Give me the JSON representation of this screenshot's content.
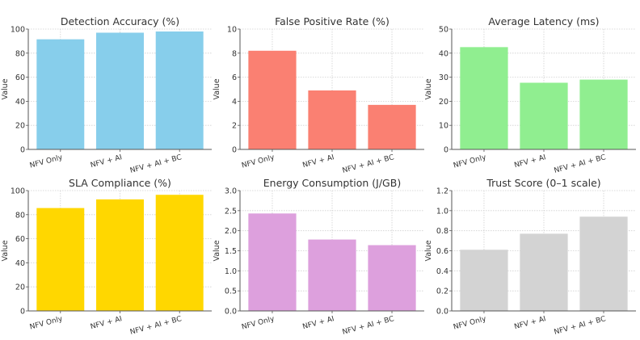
{
  "chart_data": [
    {
      "type": "bar",
      "title": "Detection Accuracy (%)",
      "ylabel": "Value",
      "xlabel": "",
      "categories": [
        "NFV Only",
        "NFV + AI",
        "NFV + AI + BC"
      ],
      "values": [
        91.5,
        97,
        98
      ],
      "ylim": [
        0,
        100
      ],
      "yticks": [
        "0",
        "20",
        "40",
        "60",
        "80",
        "100"
      ],
      "ytick_values": [
        0,
        20,
        40,
        60,
        80,
        100
      ],
      "color": "#87CEEB",
      "grid": true
    },
    {
      "type": "bar",
      "title": "False Positive Rate (%)",
      "ylabel": "Value",
      "xlabel": "",
      "categories": [
        "NFV Only",
        "NFV + AI",
        "NFV + AI + BC"
      ],
      "values": [
        8.2,
        4.9,
        3.7
      ],
      "ylim": [
        0,
        10
      ],
      "yticks": [
        "0",
        "2",
        "4",
        "6",
        "8",
        "10"
      ],
      "ytick_values": [
        0,
        2,
        4,
        6,
        8,
        10
      ],
      "color": "#FA8072",
      "grid": true
    },
    {
      "type": "bar",
      "title": "Average Latency (ms)",
      "ylabel": "Value",
      "xlabel": "",
      "categories": [
        "NFV Only",
        "NFV + AI",
        "NFV + AI + BC"
      ],
      "values": [
        42.5,
        27.7,
        29
      ],
      "ylim": [
        0,
        50
      ],
      "yticks": [
        "0",
        "10",
        "20",
        "30",
        "40",
        "50"
      ],
      "ytick_values": [
        0,
        10,
        20,
        30,
        40,
        50
      ],
      "color": "#90EE90",
      "grid": true
    },
    {
      "type": "bar",
      "title": "SLA Compliance (%)",
      "ylabel": "Value",
      "xlabel": "",
      "categories": [
        "NFV Only",
        "NFV + AI",
        "NFV + AI + BC"
      ],
      "values": [
        85.5,
        92.7,
        96.5
      ],
      "ylim": [
        0,
        100
      ],
      "yticks": [
        "0",
        "20",
        "40",
        "60",
        "80",
        "100"
      ],
      "ytick_values": [
        0,
        20,
        40,
        60,
        80,
        100
      ],
      "color": "#FFD700",
      "grid": true
    },
    {
      "type": "bar",
      "title": "Energy Consumption (J/GB)",
      "ylabel": "Value",
      "xlabel": "",
      "categories": [
        "NFV Only",
        "NFV + AI",
        "NFV + AI + BC"
      ],
      "values": [
        2.43,
        1.78,
        1.64
      ],
      "ylim": [
        0,
        3.0
      ],
      "yticks": [
        "0.0",
        "0.5",
        "1.0",
        "1.5",
        "2.0",
        "2.5",
        "3.0"
      ],
      "ytick_values": [
        0,
        0.5,
        1.0,
        1.5,
        2.0,
        2.5,
        3.0
      ],
      "color": "#DDA0DD",
      "grid": true
    },
    {
      "type": "bar",
      "title": "Trust Score (0–1 scale)",
      "ylabel": "Value",
      "xlabel": "",
      "categories": [
        "NFV Only",
        "NFV + AI",
        "NFV + AI + BC"
      ],
      "values": [
        0.61,
        0.77,
        0.94
      ],
      "ylim": [
        0,
        1.2
      ],
      "yticks": [
        "0.0",
        "0.2",
        "0.4",
        "0.6",
        "0.8",
        "1.0",
        "1.2"
      ],
      "ytick_values": [
        0,
        0.2,
        0.4,
        0.6,
        0.8,
        1.0,
        1.2
      ],
      "color": "#D3D3D3",
      "grid": true
    }
  ]
}
